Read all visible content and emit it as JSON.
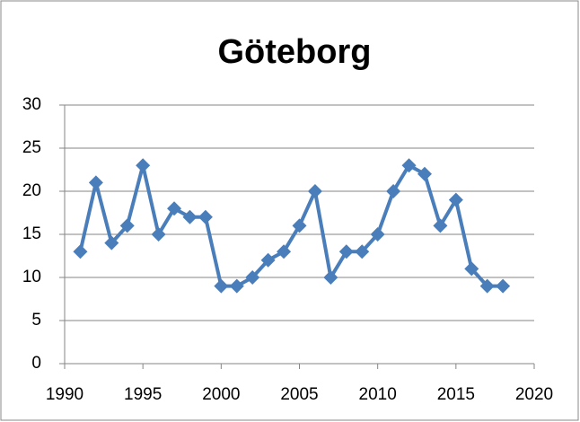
{
  "chart_data": {
    "type": "line",
    "title": "Göteborg",
    "x": [
      1991,
      1992,
      1993,
      1994,
      1995,
      1996,
      1997,
      1998,
      1999,
      2000,
      2001,
      2002,
      2003,
      2004,
      2005,
      2006,
      2007,
      2008,
      2009,
      2010,
      2011,
      2012,
      2013,
      2014,
      2015,
      2016,
      2017,
      2018
    ],
    "values": [
      13,
      21,
      14,
      16,
      23,
      15,
      18,
      17,
      17,
      9,
      9,
      10,
      12,
      13,
      16,
      20,
      10,
      13,
      13,
      15,
      20,
      23,
      22,
      16,
      19,
      11,
      9,
      9
    ],
    "color": "#4a7ebb",
    "marker": "diamond",
    "xlim": [
      1990,
      2020
    ],
    "xticks": [
      1990,
      1995,
      2000,
      2005,
      2010,
      2015,
      2020
    ],
    "ylim": [
      0,
      30
    ],
    "yticks": [
      0,
      5,
      10,
      15,
      20,
      25,
      30
    ],
    "grid": true
  }
}
